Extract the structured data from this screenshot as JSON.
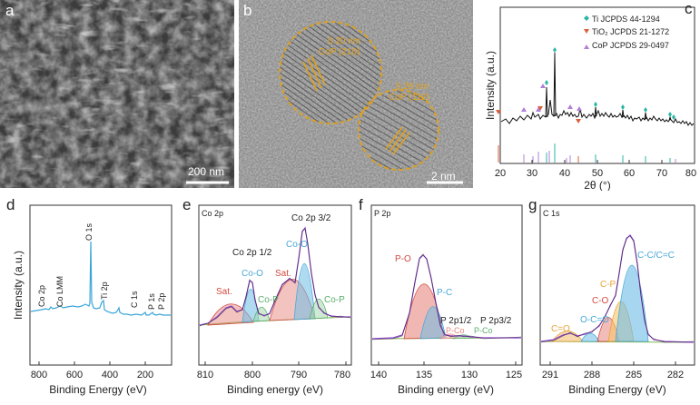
{
  "panels": {
    "a": {
      "letter": "a",
      "scale": "200 nm"
    },
    "b": {
      "letter": "b",
      "scale": "2 nm",
      "ann1_line1": "0.20 nm",
      "ann1_line2": "CoP (210)",
      "ann2_line1": "0.28 nm",
      "ann2_line2": "CoP (112)"
    },
    "c": {
      "letter": "c",
      "ylabel": "Intensity (a.u.)",
      "xlabel": "2θ (°)",
      "legend": [
        "Ti JCPDS 44-1294",
        "TiO₂ JCPDS 21-1272",
        "CoP JCPDS 29-0497"
      ],
      "xticks": [
        "20",
        "30",
        "40",
        "50",
        "60",
        "70",
        "80"
      ]
    },
    "d": {
      "letter": "d",
      "ylabel": "Intensity (a.u.)",
      "xlabel": "Binding Energy (eV)",
      "xticks": [
        "800",
        "600",
        "400",
        "200"
      ],
      "peaks": [
        "Co 2p",
        "Co LMM",
        "O 1s",
        "Ti 2p",
        "C 1s",
        "P 1s",
        "P 2p"
      ]
    },
    "e": {
      "letter": "e",
      "title": "Co 2p",
      "xlabel": "Binding energy (eV)",
      "xticks": [
        "810",
        "800",
        "790",
        "780"
      ],
      "labels": {
        "co2p12": "Co 2p 1/2",
        "co2p32": "Co 2p 3/2",
        "coo1": "Co-O",
        "coo2": "Co-O",
        "sat1": "Sat.",
        "sat2": "Sat.",
        "cop1": "Co-P",
        "cop2": "Co-P"
      }
    },
    "f": {
      "letter": "f",
      "title": "P 2p",
      "xlabel": "Binding energy (eV)",
      "xticks": [
        "140",
        "135",
        "130",
        "125"
      ],
      "labels": {
        "po": "P-O",
        "pc": "P-C",
        "p2p12": "P 2p1/2",
        "p2p32": "P 2p3/2",
        "pco": "P-Co",
        "pco2": "P-Co"
      }
    },
    "g": {
      "letter": "g",
      "title": "C 1s",
      "xlabel": "Binding Energy (eV)",
      "xticks": [
        "291",
        "288",
        "285",
        "282"
      ],
      "labels": {
        "cc": "C-C/C=C",
        "cp": "C-P",
        "co": "C-O",
        "oco": "O-C=O",
        "ceo": "C=O"
      }
    }
  },
  "colors": {
    "ti": "#2ab5a5",
    "tio2": "#d9603b",
    "cop": "#b07fd8",
    "cyan": "#4aa9d6",
    "red": "#d24a3f",
    "orange": "#e8a33a",
    "purple": "#8a3fc9"
  }
}
